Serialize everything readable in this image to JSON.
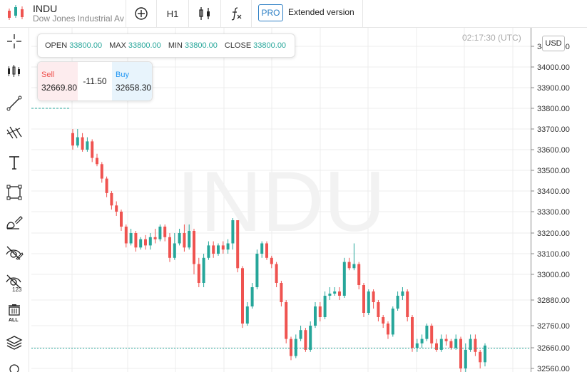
{
  "header": {
    "symbol": "INDU",
    "instrument_name": "Dow Jones Industrial Average",
    "timeframe": "H1",
    "pro_badge": "PRO",
    "extended_label": "Extended version"
  },
  "sidebar": {
    "tools": [
      "crosshair-icon",
      "candles-icon",
      "trendline-icon",
      "fib-icon",
      "text-icon",
      "rectangle-icon",
      "brush-icon",
      "hide-drawings-icon",
      "hide-numbers-icon",
      "trash-all-icon",
      "layers-icon"
    ]
  },
  "ohlc": {
    "open_label": "OPEN",
    "open_value": "33800.00",
    "max_label": "MAX",
    "max_value": "33800.00",
    "min_label": "MIN",
    "min_value": "33800.00",
    "close_label": "CLOSE",
    "close_value": "33800.00"
  },
  "trade": {
    "sell_label": "Sell",
    "sell_value": "32669.80",
    "spread": "-11.50",
    "buy_label": "Buy",
    "buy_value": "32658.30"
  },
  "chart": {
    "watermark": "INDU",
    "time": "02:17:30 (UTC)",
    "currency": "USD",
    "colors": {
      "up": "#26a69a",
      "down": "#ef5350",
      "grid": "#ececec",
      "current_line": "#26a69a"
    }
  },
  "chart_data": {
    "type": "candlestick",
    "y_ticks": [
      "34100.00",
      "34000.00",
      "33900.00",
      "33800.00",
      "33700.00",
      "33600.00",
      "33500.00",
      "33400.00",
      "33300.00",
      "33200.00",
      "33100.00",
      "33000.00",
      "32880.00",
      "32760.00",
      "32660.00",
      "32560.00"
    ],
    "current_price": 32658.3,
    "candles": [
      [
        33680,
        33620,
        33700,
        33600
      ],
      [
        33620,
        33660,
        33700,
        33610
      ],
      [
        33660,
        33600,
        33680,
        33590
      ],
      [
        33600,
        33640,
        33660,
        33590
      ],
      [
        33640,
        33560,
        33650,
        33540
      ],
      [
        33560,
        33530,
        33580,
        33520
      ],
      [
        33530,
        33460,
        33540,
        33440
      ],
      [
        33460,
        33390,
        33470,
        33370
      ],
      [
        33390,
        33330,
        33400,
        33310
      ],
      [
        33330,
        33300,
        33350,
        33280
      ],
      [
        33300,
        33230,
        33310,
        33210
      ],
      [
        33230,
        33150,
        33240,
        33130
      ],
      [
        33150,
        33200,
        33220,
        33140
      ],
      [
        33200,
        33130,
        33210,
        33110
      ],
      [
        33130,
        33170,
        33180,
        33120
      ],
      [
        33170,
        33140,
        33190,
        33120
      ],
      [
        33140,
        33180,
        33200,
        33120
      ],
      [
        33180,
        33170,
        33220,
        33150
      ],
      [
        33170,
        33230,
        33240,
        33160
      ],
      [
        33230,
        33180,
        33240,
        33160
      ],
      [
        33180,
        33080,
        33200,
        33060
      ],
      [
        33080,
        33150,
        33200,
        33070
      ],
      [
        33150,
        33200,
        33220,
        33140
      ],
      [
        33200,
        33130,
        33240,
        33110
      ],
      [
        33130,
        33210,
        33240,
        33120
      ],
      [
        33210,
        33050,
        33220,
        33000
      ],
      [
        33050,
        32960,
        33080,
        32940
      ],
      [
        32960,
        33080,
        33100,
        32940
      ],
      [
        33080,
        33140,
        33160,
        33070
      ],
      [
        33140,
        33100,
        33160,
        33080
      ],
      [
        33100,
        33140,
        33150,
        33090
      ],
      [
        33140,
        33120,
        33160,
        33100
      ],
      [
        33120,
        33150,
        33170,
        33100
      ],
      [
        33150,
        33260,
        33270,
        33120
      ],
      [
        33260,
        33030,
        33260,
        33010
      ],
      [
        33030,
        32770,
        33040,
        32750
      ],
      [
        32770,
        32850,
        32870,
        32760
      ],
      [
        32850,
        32940,
        32960,
        32840
      ],
      [
        32940,
        33100,
        33120,
        32930
      ],
      [
        33100,
        33150,
        33160,
        33080
      ],
      [
        33150,
        33080,
        33160,
        33070
      ],
      [
        33080,
        33050,
        33090,
        33030
      ],
      [
        33050,
        32960,
        33060,
        32940
      ],
      [
        32960,
        32870,
        32970,
        32850
      ],
      [
        32870,
        32700,
        32880,
        32680
      ],
      [
        32700,
        32620,
        32710,
        32600
      ],
      [
        32620,
        32700,
        32720,
        32610
      ],
      [
        32700,
        32740,
        32760,
        32690
      ],
      [
        32740,
        32650,
        32750,
        32640
      ],
      [
        32650,
        32760,
        32780,
        32640
      ],
      [
        32760,
        32850,
        32870,
        32750
      ],
      [
        32850,
        32800,
        32870,
        32780
      ],
      [
        32800,
        32900,
        32920,
        32790
      ],
      [
        32900,
        32910,
        32940,
        32880
      ],
      [
        32910,
        32920,
        32940,
        32900
      ],
      [
        32920,
        32900,
        32940,
        32880
      ],
      [
        32900,
        33060,
        33080,
        32890
      ],
      [
        33060,
        33030,
        33080,
        33020
      ],
      [
        33030,
        33050,
        33150,
        33020
      ],
      [
        33050,
        32950,
        33060,
        32930
      ],
      [
        32950,
        32820,
        32960,
        32800
      ],
      [
        32820,
        32920,
        32930,
        32810
      ],
      [
        32920,
        32870,
        32930,
        32840
      ],
      [
        32870,
        32800,
        32880,
        32780
      ],
      [
        32800,
        32770,
        32810,
        32750
      ],
      [
        32770,
        32720,
        32780,
        32700
      ],
      [
        32720,
        32840,
        32850,
        32710
      ],
      [
        32840,
        32900,
        32920,
        32830
      ],
      [
        32900,
        32920,
        32940,
        32880
      ],
      [
        32920,
        32800,
        32930,
        32780
      ],
      [
        32800,
        32660,
        32810,
        32640
      ],
      [
        32660,
        32680,
        32700,
        32640
      ],
      [
        32680,
        32700,
        32720,
        32660
      ],
      [
        32700,
        32760,
        32770,
        32690
      ],
      [
        32760,
        32680,
        32770,
        32660
      ],
      [
        32680,
        32650,
        32700,
        32640
      ],
      [
        32650,
        32700,
        32720,
        32640
      ],
      [
        32700,
        32690,
        32720,
        32670
      ],
      [
        32690,
        32660,
        32700,
        32650
      ],
      [
        32660,
        32700,
        32720,
        32650
      ],
      [
        32700,
        32560,
        32710,
        32540
      ],
      [
        32560,
        32650,
        32680,
        32540
      ],
      [
        32650,
        32700,
        32720,
        32640
      ],
      [
        32700,
        32640,
        32720,
        32620
      ],
      [
        32640,
        32590,
        32650,
        32560
      ],
      [
        32590,
        32670,
        32680,
        32570
      ]
    ]
  }
}
